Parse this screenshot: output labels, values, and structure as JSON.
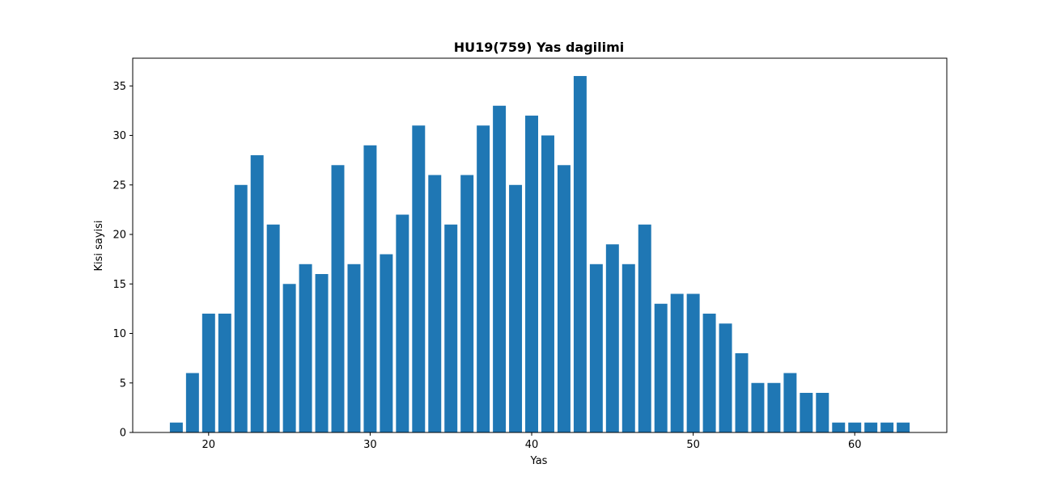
{
  "chart_data": {
    "type": "bar",
    "title": "HU19(759) Yas dagilimi",
    "xlabel": "Yas",
    "ylabel": "Kisi sayisi",
    "x": [
      18,
      19,
      20,
      21,
      22,
      23,
      24,
      25,
      26,
      27,
      28,
      29,
      30,
      31,
      32,
      33,
      34,
      35,
      36,
      37,
      38,
      39,
      40,
      41,
      42,
      43,
      44,
      45,
      46,
      47,
      48,
      49,
      50,
      51,
      52,
      53,
      54,
      55,
      56,
      57,
      58,
      59,
      60,
      61,
      62,
      63
    ],
    "values": [
      1,
      6,
      12,
      12,
      25,
      28,
      21,
      15,
      17,
      16,
      27,
      17,
      29,
      18,
      22,
      31,
      26,
      21,
      26,
      31,
      33,
      25,
      32,
      30,
      27,
      36,
      17,
      19,
      17,
      21,
      13,
      14,
      14,
      12,
      11,
      8,
      5,
      5,
      6,
      4,
      4,
      1,
      1,
      1,
      1,
      1
    ],
    "xlim": [
      15.3,
      65.7
    ],
    "ylim": [
      0,
      37.8
    ],
    "xticks": [
      20,
      30,
      40,
      50,
      60
    ],
    "yticks": [
      0,
      5,
      10,
      15,
      20,
      25,
      30,
      35
    ],
    "bar_color": "#1f77b4",
    "grid": false,
    "legend": "none"
  }
}
